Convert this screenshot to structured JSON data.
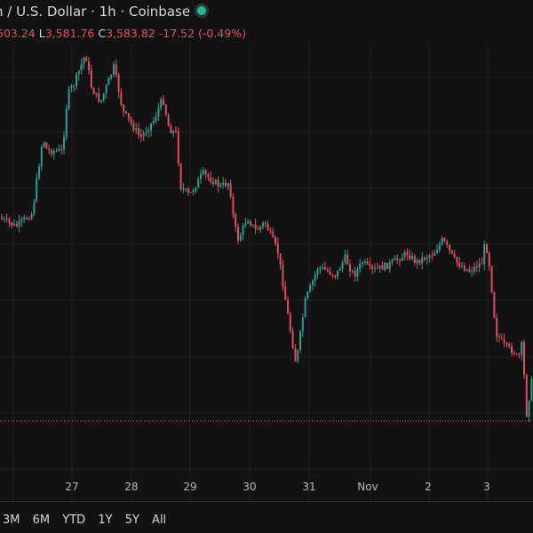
{
  "header": {
    "title": "n / U.S. Dollar · 1h · Coinbase",
    "market_status_icon": "market-open-dot-icon",
    "ohlc": {
      "high_partial": "603.24",
      "low_label": "L",
      "low": "3,581.76",
      "close_label": "C",
      "close": "3,583.82",
      "change": "-17.52 (-0.49%)"
    }
  },
  "time_axis": [
    "27",
    "28",
    "29",
    "30",
    "31",
    "Nov",
    "2",
    "3"
  ],
  "range_buttons": [
    "3M",
    "6M",
    "YTD",
    "1Y",
    "5Y",
    "All"
  ],
  "colors": {
    "up": "#2e9e8c",
    "down": "#e04e5e",
    "background": "#121212",
    "grid": "#1f1f1f",
    "price_line": "#e04e5e"
  },
  "chart_data": {
    "type": "candlestick",
    "interval": "1h",
    "last_close": 3583.82,
    "change": -17.52,
    "change_percent": -0.49,
    "x_ticks": [
      "27",
      "28",
      "29",
      "30",
      "31",
      "Nov",
      "2",
      "3"
    ],
    "grid": true
  }
}
